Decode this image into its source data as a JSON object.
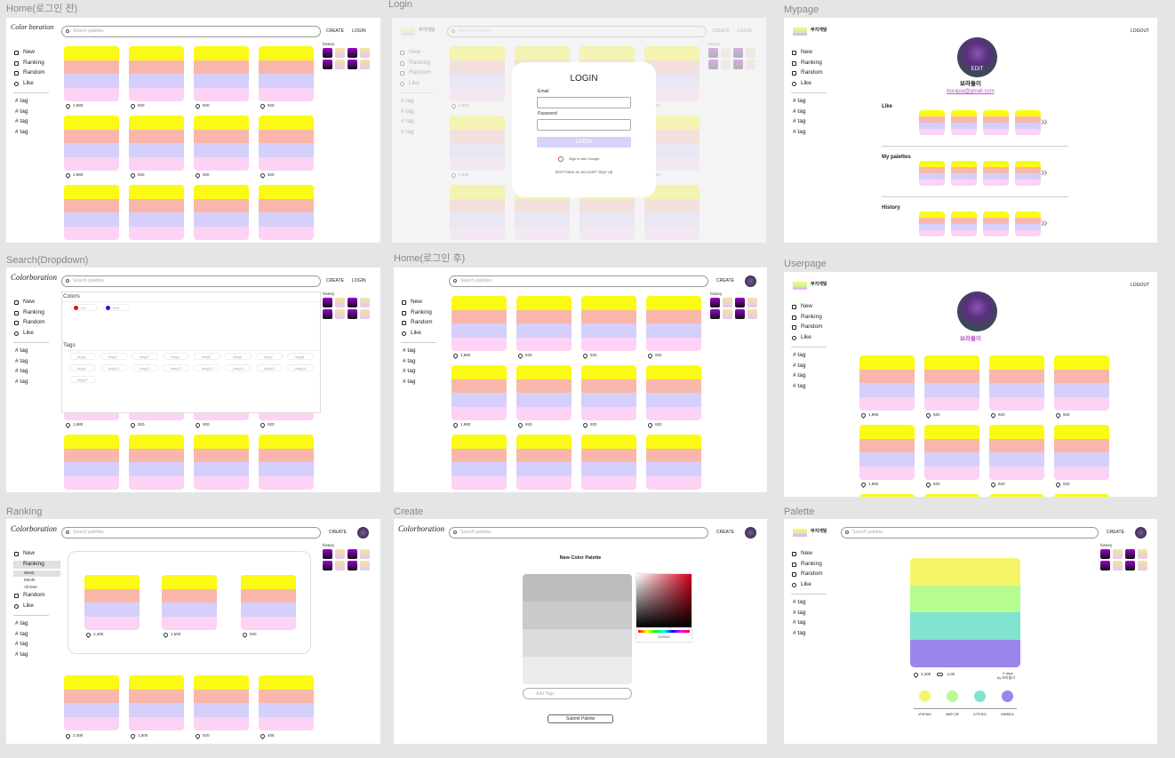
{
  "palette_colors": [
    "#fafa14",
    "#f9b7ab",
    "#d5cffb",
    "#fcd3f4"
  ],
  "history_colors": [
    "#7a00a8",
    "#e9d1f2",
    "#5a0080",
    "#fbe7a8"
  ],
  "frames": [
    {
      "title": "Home(로그인 전)",
      "kind": "home",
      "logo": "Color boration",
      "search": "Search palettes",
      "actions": [
        "CREATE",
        "LOGIN"
      ],
      "nav": [
        "New",
        "Ranking",
        "Random",
        "Like"
      ],
      "tags": [
        "# tag",
        "# tag",
        "# tag",
        "# tag"
      ],
      "history": "history",
      "likes": [
        "1,980",
        "920",
        "920",
        "920",
        "1,980",
        "920",
        "920",
        "920"
      ]
    },
    {
      "title": "Login",
      "kind": "login",
      "logo": "무지개빛",
      "search": "Search palettes",
      "actions": [
        "CREATE",
        "LOGIN"
      ],
      "nav": [
        "New",
        "Ranking",
        "Random",
        "Like"
      ],
      "tags": [
        "# tag",
        "# tag",
        "# tag",
        "# tag"
      ],
      "history": "history",
      "likes": [
        "1,980",
        "920",
        "920",
        "920",
        "1,980",
        "920",
        "920",
        "920"
      ],
      "modal": {
        "title": "LOGIN",
        "email": "Email",
        "password": "Password",
        "button": "LOGIN",
        "google": "Sign in with Google",
        "signup": "Don't have an account? Sign Up"
      }
    },
    {
      "title": "Mypage",
      "kind": "mypage",
      "logo": "무지개빛",
      "actions": [
        "LOGOUT"
      ],
      "nav": [
        "New",
        "Ranking",
        "Random",
        "Like"
      ],
      "tags": [
        "# tag",
        "# tag",
        "# tag",
        "# tag"
      ],
      "edit": "EDIT",
      "name": "보라돌이",
      "email": "borajoa@gmail.com",
      "sections": [
        "Like",
        "My palettes",
        "History"
      ],
      "more": "»"
    },
    {
      "title": "Search(Dropdown)",
      "kind": "search",
      "logo": "Colorboration",
      "search": "Search palettes",
      "actions": [
        "CREATE",
        "LOGIN"
      ],
      "nav": [
        "New",
        "Ranking",
        "Random",
        "Like"
      ],
      "tags": [
        "# tag",
        "# tag",
        "# tag",
        "# tag"
      ],
      "history": "history",
      "likes": [
        "1,980",
        "920",
        "920",
        "920"
      ],
      "colors_label": "Colors",
      "color_chips": [
        {
          "name": "red",
          "color": "#e8001c"
        },
        {
          "name": "blue",
          "color": "#1a12f0"
        }
      ],
      "tags_label": "Tags",
      "tag_chips": [
        "#tag1",
        "#tag2",
        "#tag3",
        "#tag4",
        "#tag5",
        "#tag6",
        "#tag7",
        "#tag8",
        "#tag9",
        "#tag10",
        "#tag11",
        "#tag12",
        "#tag13",
        "#tag14",
        "#tag15",
        "#tag16",
        "#tag17"
      ]
    },
    {
      "title": "Home(로그인 후)",
      "kind": "home2",
      "logo": "",
      "search": "Search palettes",
      "actions": [
        "CREATE"
      ],
      "nav": [
        "New",
        "Ranking",
        "Random",
        "Like"
      ],
      "tags": [
        "# tag",
        "# tag",
        "# tag",
        "# tag"
      ],
      "history": "history",
      "likes": [
        "1,980",
        "920",
        "920",
        "920",
        "1,980",
        "920",
        "920",
        "920"
      ]
    },
    {
      "title": "Userpage",
      "kind": "userpage",
      "logo": "무지개빛",
      "actions": [
        "LOGOUT"
      ],
      "nav": [
        "New",
        "Ranking",
        "Random",
        "Like"
      ],
      "tags": [
        "# tag",
        "# tag",
        "# tag",
        "# tag"
      ],
      "name": "보라돌이",
      "likes": [
        "1,980",
        "920",
        "920",
        "920",
        "1,980",
        "920",
        "920",
        "920"
      ]
    },
    {
      "title": "Ranking",
      "kind": "ranking",
      "logo": "Colorboration",
      "search": "Search palettes",
      "actions": [
        "CREATE"
      ],
      "nav": [
        "New",
        "Ranking",
        "Random",
        "Like"
      ],
      "subnav": [
        "Week",
        "Month",
        "All time"
      ],
      "tags": [
        "# tag",
        "# tag",
        "# tag",
        "# tag"
      ],
      "history": "history",
      "top_likes": [
        "2,405",
        "1,600",
        "920"
      ],
      "likes": [
        "2,405",
        "1,600",
        "920",
        "456"
      ]
    },
    {
      "title": "Create",
      "kind": "create",
      "logo": "Colorboration",
      "search": "Search palettes",
      "actions": [
        "CREATE"
      ],
      "heading": "New Color Palette",
      "hex": "000000",
      "add_tags": "Add Tags",
      "submit": "Submit Palette"
    },
    {
      "title": "Palette",
      "kind": "palette",
      "logo": "무지개빛",
      "search": "Search palettes",
      "actions": [
        "CREATE"
      ],
      "nav": [
        "New",
        "Ranking",
        "Random",
        "Like"
      ],
      "tags": [
        "# tag",
        "# tag",
        "# tag",
        "# tag"
      ],
      "history": "history",
      "colors": [
        "#f5f56a",
        "#b6fc8e",
        "#7fe3d0",
        "#9b85ea"
      ],
      "codes": [
        "#F5F56A",
        "#B6FC8E",
        "#7FE3D0",
        "#9B85EA"
      ],
      "likes": "2,405",
      "link": "Link",
      "age": "2 days",
      "by": "by 보라돌이"
    }
  ]
}
